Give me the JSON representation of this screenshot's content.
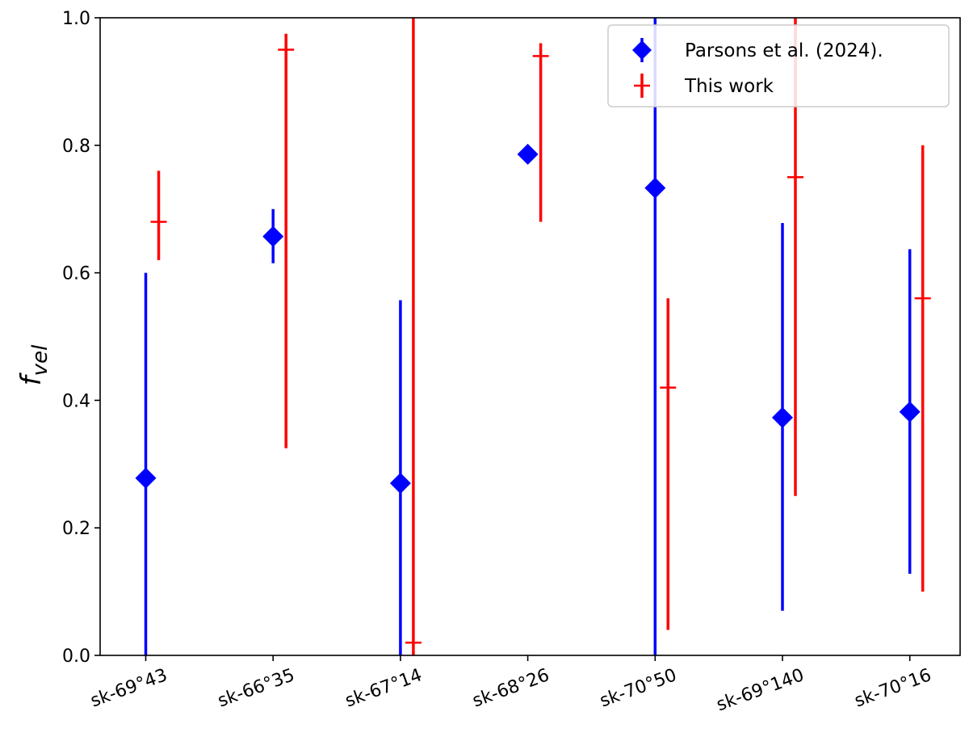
{
  "chart_data": {
    "type": "scatter",
    "ylabel": "f",
    "ylabel_sub": "vel",
    "ylim": [
      0,
      1
    ],
    "yticks": [
      "0.0",
      "0.2",
      "0.4",
      "0.6",
      "0.8",
      "1.0"
    ],
    "categories": [
      "sk-69°43",
      "sk-66°35",
      "sk-67°14",
      "sk-68°26",
      "sk-70°50",
      "sk-69°140",
      "sk-70°16"
    ],
    "legend_position": "top-right",
    "series": [
      {
        "name": "Parsons et al. (2024).",
        "color": "#0000ff",
        "marker": "diamond",
        "values": [
          0.278,
          0.657,
          0.27,
          0.786,
          0.733,
          0.373,
          0.382
        ],
        "lower": [
          0.0,
          0.615,
          0.0,
          0.786,
          0.0,
          0.07,
          0.128
        ],
        "upper": [
          0.6,
          0.7,
          0.557,
          0.786,
          1.0,
          0.678,
          0.637
        ]
      },
      {
        "name": "This work",
        "color": "#ff0000",
        "marker": "plus",
        "values": [
          0.68,
          0.95,
          0.02,
          0.94,
          0.42,
          0.75,
          0.56
        ],
        "lower": [
          0.62,
          0.325,
          0.0,
          0.68,
          0.04,
          0.25,
          0.1
        ],
        "upper": [
          0.76,
          0.975,
          1.0,
          0.96,
          0.56,
          1.0,
          0.8
        ]
      }
    ]
  }
}
